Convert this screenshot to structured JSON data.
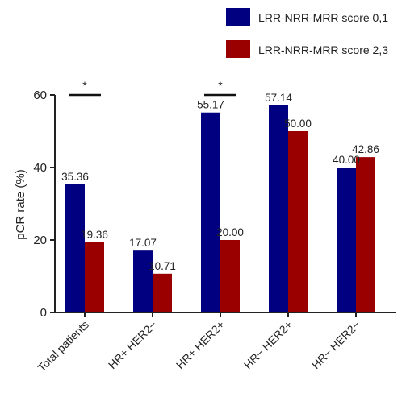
{
  "chart_data": {
    "type": "bar",
    "categories": [
      "Total patients",
      "HR+ HER2−",
      "HR+ HER2+",
      "HR− HER2+",
      "HR− HER2−"
    ],
    "series": [
      {
        "name": "LRR-NRR-MRR score 0,1",
        "color": "#000080",
        "values": [
          35.36,
          17.07,
          55.17,
          57.14,
          40.0
        ],
        "labels": [
          "35.36",
          "17.07",
          "55.17",
          "57.14",
          "40.00"
        ]
      },
      {
        "name": "LRR-NRR-MRR score 2,3",
        "color": "#9B0000",
        "values": [
          19.36,
          10.71,
          20.0,
          50.0,
          42.86
        ],
        "labels": [
          "19.36",
          "10.71",
          "20.00",
          "50.00",
          "42.86"
        ]
      }
    ],
    "ylabel": "pCR rate (%)",
    "ylim": [
      0,
      60
    ],
    "yticks": [
      0,
      20,
      40,
      60
    ],
    "ytick_labels": [
      "0",
      "20",
      "40",
      "60"
    ],
    "grid": false,
    "legend_position": "top-right",
    "significance": [
      {
        "category": "Total patients",
        "label": "*"
      },
      {
        "category": "HR+ HER2+",
        "label": "*"
      }
    ]
  }
}
